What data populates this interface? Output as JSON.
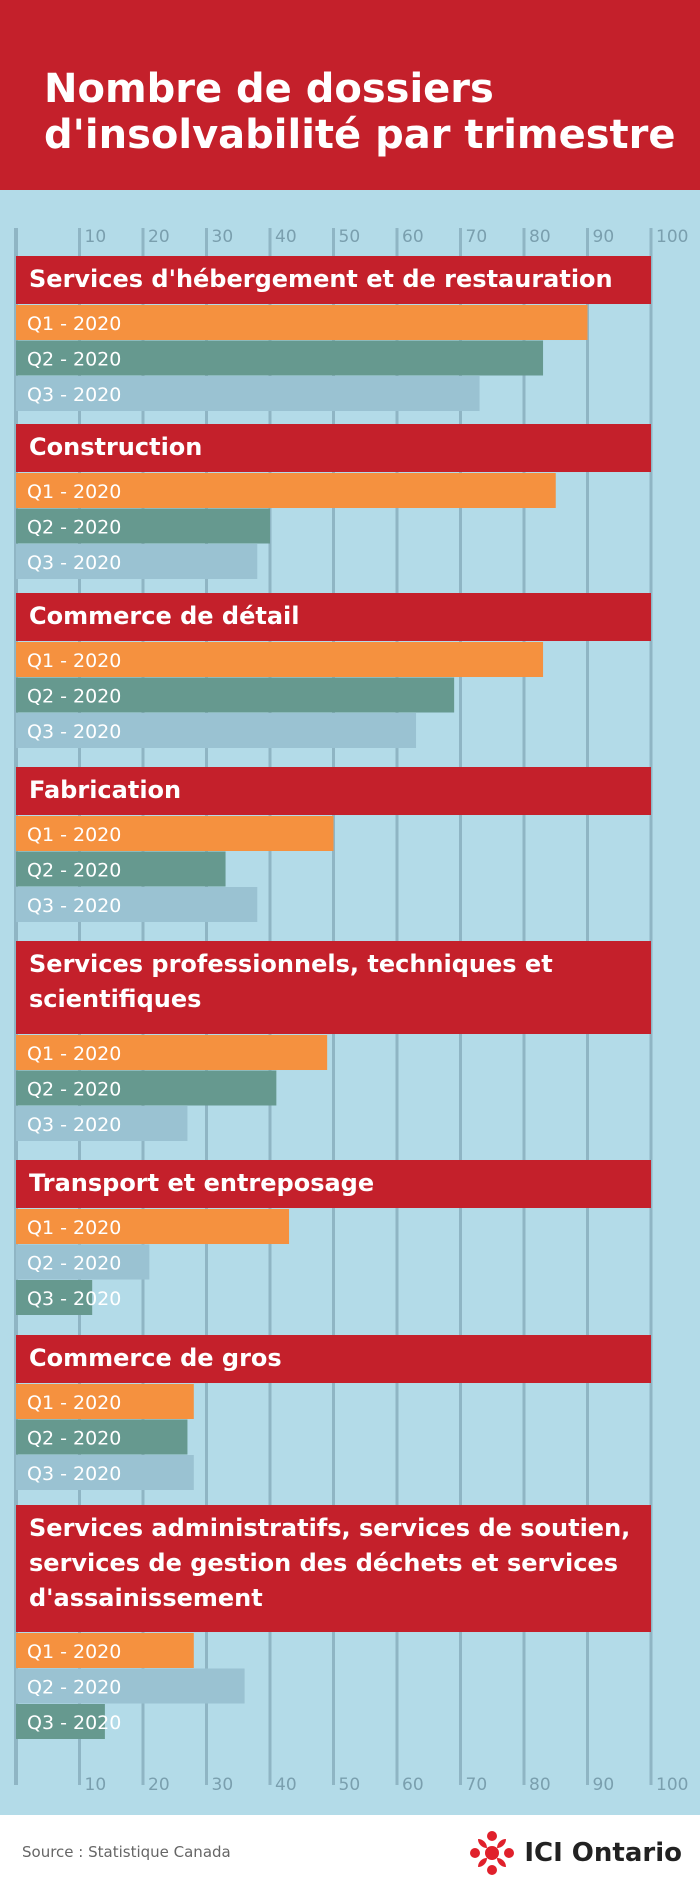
{
  "title": "Nombre de dossiers d'insolvabilité par trimestre",
  "source": "Source : Statistique Canada",
  "brand": "ICI Ontario",
  "colors": {
    "header": "#c4202b",
    "background": "#b3dbe8",
    "gridline": "#8fb5c4",
    "axis_text": "#7a9fae",
    "Q1 - 2020": "#f5913f",
    "Q2 - 2020": "#66998f",
    "Q3 - 2020": "#9ac2d2",
    "light_bar": "#9ac2d2"
  },
  "chart_data": {
    "type": "bar",
    "orientation": "horizontal",
    "xlim": [
      0,
      100
    ],
    "ticks": [
      10,
      20,
      30,
      40,
      50,
      60,
      70,
      80,
      90,
      100
    ],
    "grid": true,
    "groups": [
      {
        "name": "Services d'hébergement et de restauration",
        "bars": [
          {
            "label": "Q1 - 2020",
            "value": 90,
            "color": "#f5913f"
          },
          {
            "label": "Q2 - 2020",
            "value": 83,
            "color": "#66998f"
          },
          {
            "label": "Q3 - 2020",
            "value": 73,
            "color": "#9ac2d2"
          }
        ]
      },
      {
        "name": "Construction",
        "bars": [
          {
            "label": "Q1 - 2020",
            "value": 85,
            "color": "#f5913f"
          },
          {
            "label": "Q2 - 2020",
            "value": 40,
            "color": "#66998f"
          },
          {
            "label": "Q3 - 2020",
            "value": 38,
            "color": "#9ac2d2"
          }
        ]
      },
      {
        "name": "Commerce de détail",
        "bars": [
          {
            "label": "Q1 - 2020",
            "value": 83,
            "color": "#f5913f"
          },
          {
            "label": "Q2 - 2020",
            "value": 69,
            "color": "#66998f"
          },
          {
            "label": "Q3 - 2020",
            "value": 63,
            "color": "#9ac2d2"
          }
        ]
      },
      {
        "name": "Fabrication",
        "bars": [
          {
            "label": "Q1 - 2020",
            "value": 50,
            "color": "#f5913f"
          },
          {
            "label": "Q2 - 2020",
            "value": 33,
            "color": "#66998f"
          },
          {
            "label": "Q3 - 2020",
            "value": 38,
            "color": "#9ac2d2"
          }
        ]
      },
      {
        "name": "Services professionnels, techniques et scientifiques",
        "bars": [
          {
            "label": "Q1 - 2020",
            "value": 49,
            "color": "#f5913f"
          },
          {
            "label": "Q2 - 2020",
            "value": 41,
            "color": "#66998f"
          },
          {
            "label": "Q3 - 2020",
            "value": 27,
            "color": "#9ac2d2"
          }
        ]
      },
      {
        "name": "Transport et entreposage",
        "bars": [
          {
            "label": "Q1 - 2020",
            "value": 43,
            "color": "#f5913f"
          },
          {
            "label": "Q2 - 2020",
            "value": 21,
            "color": "#9ac2d2"
          },
          {
            "label": "Q3 - 2020",
            "value": 12,
            "color": "#66998f"
          }
        ]
      },
      {
        "name": "Commerce de gros",
        "bars": [
          {
            "label": "Q1 - 2020",
            "value": 28,
            "color": "#f5913f"
          },
          {
            "label": "Q2 - 2020",
            "value": 27,
            "color": "#66998f"
          },
          {
            "label": "Q3 - 2020",
            "value": 28,
            "color": "#9ac2d2"
          }
        ]
      },
      {
        "name": "Services administratifs, services de soutien, services de gestion des déchets et services d'assainissement",
        "bars": [
          {
            "label": "Q1 - 2020",
            "value": 28,
            "color": "#f5913f"
          },
          {
            "label": "Q2 - 2020",
            "value": 36,
            "color": "#9ac2d2"
          },
          {
            "label": "Q3 - 2020",
            "value": 14,
            "color": "#66998f"
          }
        ]
      }
    ]
  }
}
